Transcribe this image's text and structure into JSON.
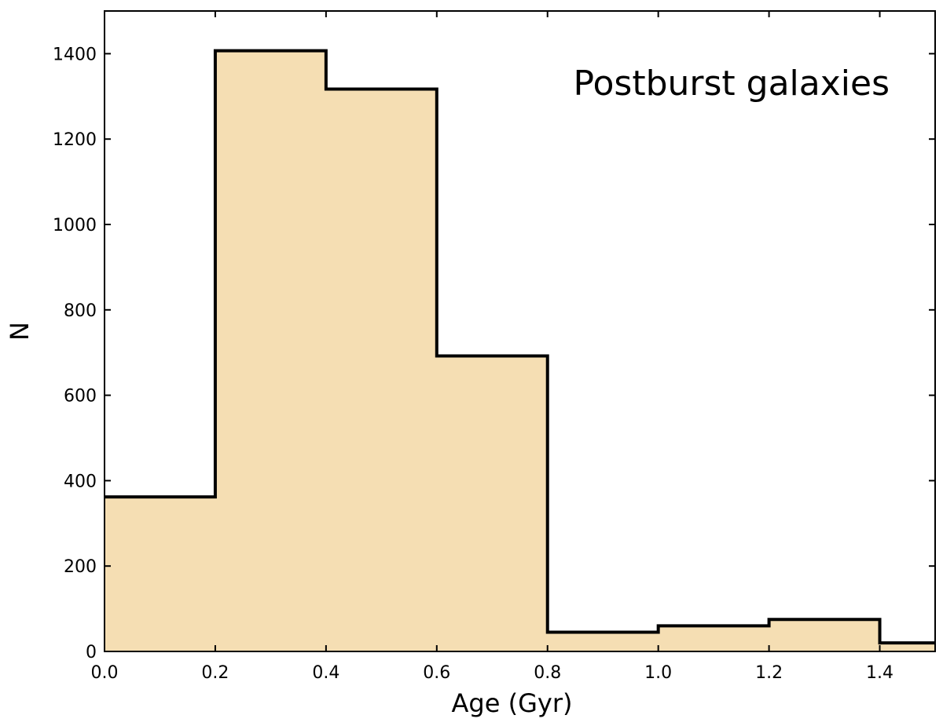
{
  "chart_data": {
    "type": "bar",
    "subtype": "histogram-step-filled",
    "bin_edges": [
      0.0,
      0.2,
      0.4,
      0.6,
      0.8,
      1.0,
      1.2,
      1.4,
      1.5
    ],
    "values": [
      362,
      1407,
      1317,
      692,
      45,
      60,
      75,
      20
    ],
    "xlabel": "Age (Gyr)",
    "ylabel": "N",
    "xlim": [
      0.0,
      1.5
    ],
    "ylim": [
      0,
      1500
    ],
    "xticks": [
      "0.0",
      "0.2",
      "0.4",
      "0.6",
      "0.8",
      "1.0",
      "1.2",
      "1.4"
    ],
    "yticks": [
      "0",
      "200",
      "400",
      "600",
      "800",
      "1000",
      "1200",
      "1400"
    ],
    "annotation": "Postburst galaxies",
    "legend": "none",
    "grid": false,
    "colors": {
      "fill": "#f5deb3",
      "edge": "#000000"
    }
  }
}
